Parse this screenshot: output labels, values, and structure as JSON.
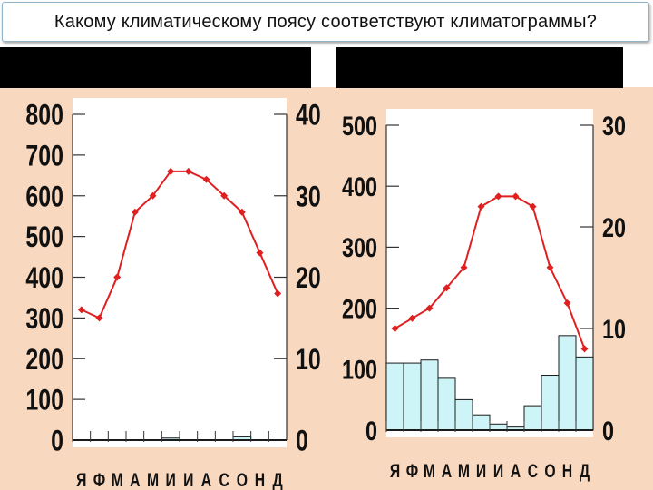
{
  "title": "Какому климатическому поясу соответствуют климатограммы?",
  "colors": {
    "temperature_line": "#e02020",
    "precip_fill": "#cdf5f8",
    "panel_bg": "#f8d8bf",
    "header_bar": "#000000"
  },
  "chart_data": [
    {
      "type": "bar+line",
      "categories": [
        "Я",
        "Ф",
        "М",
        "А",
        "М",
        "И",
        "И",
        "А",
        "С",
        "О",
        "Н",
        "Д"
      ],
      "precip_axis": {
        "ticks": [
          "0",
          "100",
          "200",
          "300",
          "400",
          "500",
          "600",
          "700",
          "800"
        ],
        "ylim": [
          0,
          800
        ]
      },
      "temp_axis": {
        "ticks": [
          "0",
          "10",
          "20",
          "30",
          "40"
        ],
        "ylim": [
          0,
          40
        ]
      },
      "precipitation": [
        0,
        0,
        0,
        0,
        0,
        5,
        0,
        0,
        0,
        8,
        0,
        0
      ],
      "temperature": [
        16,
        15,
        20,
        28,
        30,
        33,
        33,
        32,
        30,
        28,
        23,
        18
      ],
      "grid": false,
      "legend": "none"
    },
    {
      "type": "bar+line",
      "categories": [
        "Я",
        "Ф",
        "М",
        "А",
        "М",
        "И",
        "И",
        "А",
        "С",
        "О",
        "Н",
        "Д"
      ],
      "precip_axis": {
        "ticks": [
          "0",
          "100",
          "200",
          "300",
          "400",
          "500"
        ],
        "ylim": [
          0,
          500
        ]
      },
      "temp_axis": {
        "ticks": [
          "0",
          "10",
          "20",
          "30"
        ],
        "ylim": [
          0,
          30
        ]
      },
      "precipitation": [
        110,
        110,
        115,
        85,
        50,
        25,
        10,
        5,
        40,
        90,
        155,
        120
      ],
      "temperature": [
        10,
        11,
        12,
        14,
        16,
        22,
        23,
        23,
        22,
        16,
        12.5,
        8
      ],
      "grid": false,
      "legend": "none"
    }
  ]
}
